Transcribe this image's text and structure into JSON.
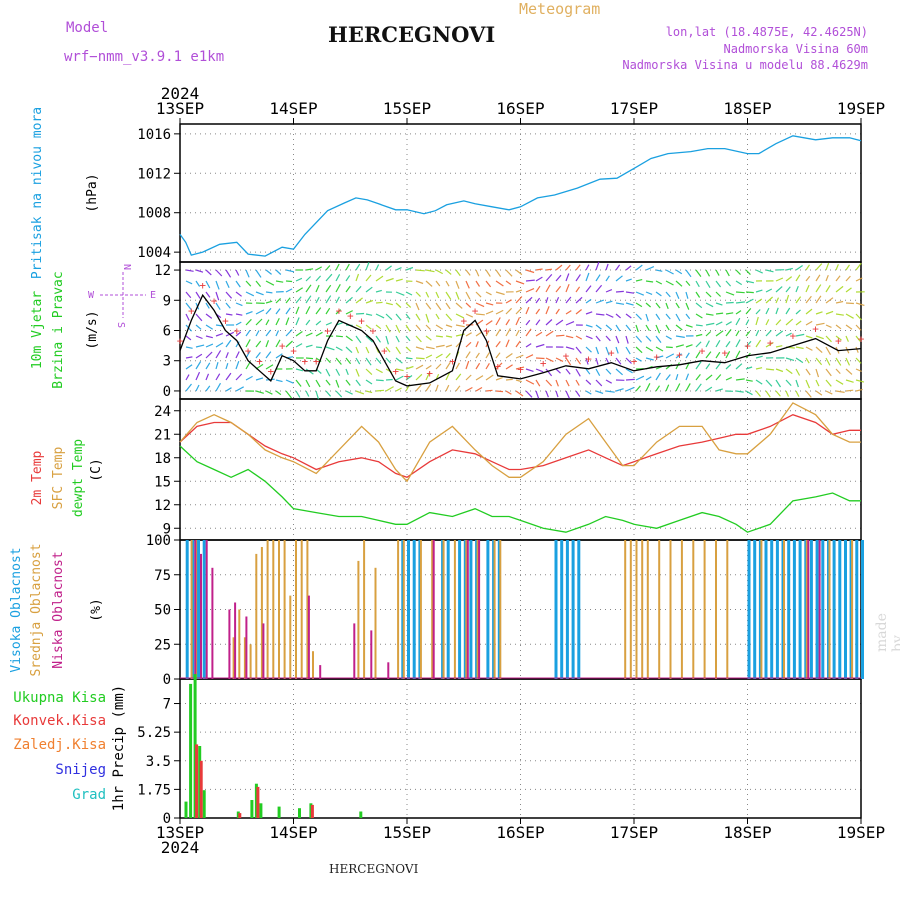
{
  "header": {
    "model_label": "Model",
    "model_value": "wrf−nmm_v3.9.1  e1km",
    "station": "HERCEGNOVI",
    "meteogram": "Meteogram",
    "lonlat": "lon,lat (18.4875E, 42.4625N)",
    "elevation": "Nadmorska Visina 60m",
    "model_elevation": "Nadmorska Visina u modelu 88.4629m",
    "footer_station": "HERCEGNOVI",
    "watermark": "made by Angel"
  },
  "colors": {
    "pressure": "#1aa0e0",
    "temp2m": "#e83a3a",
    "sfc": "#d8a040",
    "dewpt": "#22cc22",
    "high_cloud": "#1aa0e0",
    "mid_cloud": "#d8a040",
    "low_cloud": "#c0208a",
    "total_precip": "#22cc22",
    "conv_precip": "#e83a3a",
    "frozen_precip": "#f08030",
    "snow": "#3030e0",
    "hail": "#20c0c0",
    "wind_line": "#000000",
    "gust": "#e83a3a",
    "wind_label": "#22cc22",
    "compass": "#b14fd8"
  },
  "chart_data": [
    {
      "type": "line",
      "panel": "pressure",
      "ylabel_1": "Pritisak na nivou mora",
      "ylabel_2": "(hPa)",
      "ylim": [
        1003,
        1017
      ],
      "yticks": [
        "1004",
        "1008",
        "1012",
        "1016"
      ],
      "x_days": [
        0,
        0.05,
        0.1,
        0.2,
        0.35,
        0.5,
        0.6,
        0.75,
        0.9,
        1.0,
        1.1,
        1.3,
        1.45,
        1.55,
        1.65,
        1.75,
        1.9,
        2.0,
        2.15,
        2.25,
        2.35,
        2.5,
        2.6,
        2.75,
        2.9,
        3.0,
        3.15,
        3.3,
        3.5,
        3.7,
        3.85,
        4.0,
        4.15,
        4.3,
        4.5,
        4.65,
        4.8,
        5.0,
        5.1,
        5.25,
        5.4,
        5.6,
        5.75,
        5.9,
        6.0
      ],
      "series": [
        {
          "values": [
            1005.8,
            1005.0,
            1003.7,
            1004.0,
            1004.8,
            1005.0,
            1003.8,
            1003.6,
            1004.5,
            1004.3,
            1005.8,
            1008.2,
            1009.0,
            1009.5,
            1009.3,
            1008.9,
            1008.3,
            1008.3,
            1007.9,
            1008.2,
            1008.8,
            1009.2,
            1008.9,
            1008.6,
            1008.3,
            1008.6,
            1009.5,
            1009.8,
            1010.5,
            1011.4,
            1011.5,
            1012.5,
            1013.5,
            1014.0,
            1014.2,
            1014.5,
            1014.5,
            1014.0,
            1014.0,
            1015.0,
            1015.8,
            1015.4,
            1015.6,
            1015.6,
            1015.3
          ]
        }
      ]
    },
    {
      "type": "line",
      "panel": "wind",
      "ylabel_1": "10m Vjetar",
      "ylabel_2": "Brzina i Pravac",
      "ylabel_3": "(m/s)",
      "compass": "N",
      "compass_w": "W",
      "compass_e": "E",
      "compass_s": "S",
      "ylim": [
        -0.8,
        12.8
      ],
      "yticks": [
        "0",
        "3",
        "6",
        "9",
        "12"
      ],
      "x_days": [
        0,
        0.1,
        0.2,
        0.3,
        0.4,
        0.5,
        0.6,
        0.7,
        0.8,
        0.9,
        1.0,
        1.1,
        1.2,
        1.3,
        1.4,
        1.5,
        1.6,
        1.7,
        1.8,
        1.9,
        2.0,
        2.2,
        2.4,
        2.5,
        2.6,
        2.7,
        2.8,
        3.0,
        3.2,
        3.4,
        3.6,
        3.8,
        4.0,
        4.2,
        4.4,
        4.6,
        4.8,
        5.0,
        5.2,
        5.4,
        5.6,
        5.8,
        6.0
      ],
      "series": [
        {
          "name": "wind speed",
          "values": [
            4,
            7,
            9.5,
            8,
            6,
            5,
            3,
            2,
            1,
            3.5,
            3,
            2,
            2,
            5,
            7,
            6.5,
            6,
            5,
            3,
            1,
            0.5,
            0.8,
            2,
            6,
            7,
            5,
            1.5,
            1.2,
            1.8,
            2.5,
            2.2,
            2.8,
            2.0,
            2.4,
            2.6,
            3.0,
            2.8,
            3.5,
            3.8,
            4.5,
            5.2,
            4.0,
            4.2
          ]
        }
      ]
    },
    {
      "type": "line",
      "panel": "temperature",
      "ylabel_1": "2m Temp",
      "ylabel_2": "SFC Temp",
      "ylabel_3": "dewpt Temp",
      "ylabel_4": "(C)",
      "ylim": [
        7.5,
        25.5
      ],
      "yticks": [
        "9",
        "12",
        "15",
        "18",
        "21",
        "24"
      ],
      "x_days": [
        0,
        0.15,
        0.3,
        0.45,
        0.6,
        0.75,
        0.9,
        1.0,
        1.2,
        1.4,
        1.6,
        1.75,
        1.9,
        2.0,
        2.2,
        2.4,
        2.6,
        2.75,
        2.9,
        3.0,
        3.2,
        3.4,
        3.6,
        3.75,
        3.9,
        4.0,
        4.2,
        4.4,
        4.6,
        4.75,
        4.9,
        5.0,
        5.2,
        5.4,
        5.6,
        5.75,
        5.9,
        6.0
      ],
      "series": [
        {
          "name": "2m Temp",
          "values": [
            20,
            22,
            22.5,
            22.5,
            21,
            19.5,
            18.5,
            18.0,
            16.5,
            17.5,
            18.0,
            17.5,
            16.0,
            15.5,
            17.5,
            19.0,
            18.5,
            17.5,
            16.5,
            16.5,
            17.0,
            18.0,
            19.0,
            18.0,
            17.0,
            17.5,
            18.5,
            19.5,
            20.0,
            20.5,
            21.0,
            21.0,
            22.0,
            23.5,
            22.5,
            21.0,
            21.5,
            21.5
          ]
        },
        {
          "name": "SFC Temp",
          "values": [
            20,
            22.5,
            23.5,
            22.5,
            21,
            19,
            18.0,
            17.5,
            16.0,
            19.0,
            22.0,
            20.0,
            16.5,
            15.0,
            20.0,
            22.0,
            19.0,
            17.0,
            15.5,
            15.5,
            17.5,
            21.0,
            23.0,
            20.0,
            17.0,
            17.0,
            20.0,
            22.0,
            22.0,
            19.0,
            18.5,
            18.5,
            21.0,
            25.0,
            23.5,
            21.0,
            20.0,
            20.0
          ]
        },
        {
          "name": "dewpt Temp",
          "values": [
            19.5,
            17.5,
            16.5,
            15.5,
            16.5,
            15.0,
            13.0,
            11.5,
            11.0,
            10.5,
            10.5,
            10.0,
            9.5,
            9.5,
            11.0,
            10.5,
            11.5,
            10.5,
            10.5,
            10.0,
            9.0,
            8.5,
            9.5,
            10.5,
            10.0,
            9.5,
            9.0,
            10.0,
            11.0,
            10.5,
            9.5,
            8.5,
            9.5,
            12.5,
            13.0,
            13.5,
            12.5,
            12.5
          ]
        }
      ]
    },
    {
      "type": "bar",
      "panel": "clouds",
      "ylabel_1": "Visoka Oblacnost",
      "ylabel_2": "Srednja Oblacnost",
      "ylabel_3": "Niska Oblacnost",
      "ylabel_4": "(%)",
      "ylim": [
        0,
        100
      ],
      "yticks": [
        "0",
        "25",
        "50",
        "75",
        "100"
      ],
      "series": [
        {
          "name": "Visoka Oblacnost",
          "x_days": [
            0.05,
            0.1,
            0.15,
            0.2,
            1.95,
            2.0,
            2.05,
            2.1,
            2.3,
            2.35,
            2.45,
            2.5,
            2.55,
            2.6,
            2.7,
            2.75,
            2.8,
            3.3,
            3.35,
            3.4,
            3.45,
            3.5,
            5.0,
            5.05,
            5.1,
            5.15,
            5.2,
            5.25,
            5.3,
            5.35,
            5.4,
            5.45,
            5.5,
            5.55,
            5.6,
            5.65,
            5.7,
            5.75,
            5.8,
            5.85,
            5.9,
            5.95,
            6.0
          ],
          "values": [
            100,
            100,
            100,
            100,
            100,
            100,
            100,
            100,
            100,
            100,
            100,
            100,
            100,
            100,
            100,
            100,
            100,
            100,
            100,
            100,
            100,
            100,
            100,
            100,
            100,
            100,
            100,
            100,
            100,
            100,
            100,
            100,
            100,
            100,
            100,
            100,
            100,
            100,
            100,
            100,
            100,
            100,
            100
          ]
        },
        {
          "name": "Srednja Oblacnost",
          "x_days": [
            0.08,
            0.12,
            0.45,
            0.5,
            0.55,
            0.6,
            0.65,
            0.7,
            0.75,
            0.8,
            0.85,
            0.9,
            0.95,
            1.0,
            1.05,
            1.1,
            1.15,
            1.55,
            1.6,
            1.7,
            1.9,
            1.95,
            2.1,
            2.2,
            2.3,
            2.4,
            2.5,
            2.6,
            2.75,
            2.8,
            3.9,
            3.95,
            4.0,
            4.05,
            4.1,
            4.2,
            4.3,
            4.4,
            4.5,
            4.6,
            4.7,
            4.8,
            5.1,
            5.3,
            5.5,
            5.7,
            5.9
          ],
          "values": [
            100,
            100,
            30,
            50,
            30,
            25,
            90,
            95,
            100,
            100,
            100,
            100,
            60,
            100,
            100,
            100,
            20,
            85,
            100,
            80,
            100,
            100,
            100,
            100,
            100,
            100,
            100,
            100,
            100,
            100,
            100,
            100,
            100,
            100,
            100,
            100,
            100,
            100,
            100,
            100,
            100,
            100,
            100,
            100,
            100,
            100,
            100
          ]
        },
        {
          "name": "Niska Oblacnost",
          "x_days": [
            0.1,
            0.15,
            0.2,
            0.25,
            0.4,
            0.45,
            0.55,
            0.7,
            1.1,
            1.2,
            1.5,
            1.65,
            1.8,
            2.2,
            2.5,
            2.6,
            5.5,
            5.6
          ],
          "values": [
            100,
            90,
            100,
            80,
            50,
            55,
            45,
            40,
            60,
            10,
            40,
            35,
            12,
            100,
            100,
            100,
            100,
            100
          ]
        }
      ]
    },
    {
      "type": "bar",
      "panel": "precip",
      "ylabel_1": "Ukupna Kisa",
      "ylabel_2": "Konvek.Kisa",
      "ylabel_3": "Zaledj.Kisa",
      "ylabel_4": "Snijeg",
      "ylabel_5": "Grad",
      "ylabel_6": "1hr Precip (mm)",
      "ylim": [
        0,
        8.5
      ],
      "yticks": [
        "0",
        "1.75",
        "3.5",
        "5.25",
        "7"
      ],
      "series": [
        {
          "name": "Ukupna Kisa",
          "x_days": [
            0.04,
            0.08,
            0.12,
            0.16,
            0.2,
            0.5,
            0.62,
            0.66,
            0.7,
            0.86,
            1.04,
            1.14,
            1.58
          ],
          "values": [
            1.0,
            8.2,
            8.8,
            4.4,
            1.7,
            0.4,
            1.1,
            2.1,
            0.9,
            0.7,
            0.6,
            0.9,
            0.4
          ]
        },
        {
          "name": "Konvek.Kisa",
          "x_days": [
            0.12,
            0.16,
            0.5,
            0.66,
            1.14
          ],
          "values": [
            4.5,
            3.5,
            0.3,
            1.9,
            0.8
          ]
        }
      ]
    }
  ],
  "x_axis": {
    "labels": [
      "13SEP",
      "14SEP",
      "15SEP",
      "16SEP",
      "17SEP",
      "18SEP",
      "19SEP"
    ],
    "year_top": "2024",
    "year_bottom": "2024"
  }
}
